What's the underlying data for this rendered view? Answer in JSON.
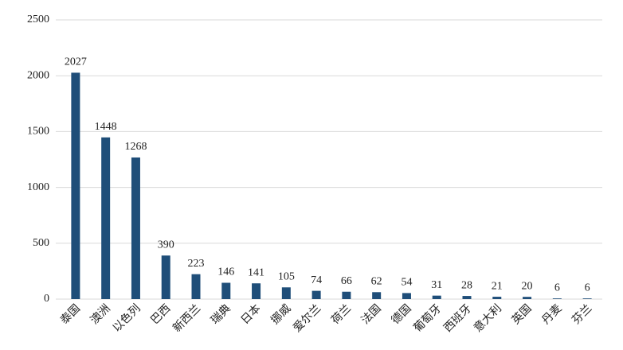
{
  "chart_data": {
    "type": "bar",
    "categories": [
      "泰国",
      "澳洲",
      "以色列",
      "巴西",
      "新西兰",
      "瑞典",
      "日本",
      "挪威",
      "爱尔兰",
      "荷兰",
      "法国",
      "德国",
      "葡萄牙",
      "西班牙",
      "意大利",
      "英国",
      "丹麦",
      "芬兰"
    ],
    "values": [
      2027,
      1448,
      1268,
      390,
      223,
      146,
      141,
      105,
      74,
      66,
      62,
      54,
      31,
      28,
      21,
      20,
      6,
      6
    ],
    "color": "#1f4e79",
    "ylim": [
      0,
      2500
    ],
    "yticks": [
      0,
      500,
      1000,
      1500,
      2000,
      2500
    ],
    "grid": true
  }
}
